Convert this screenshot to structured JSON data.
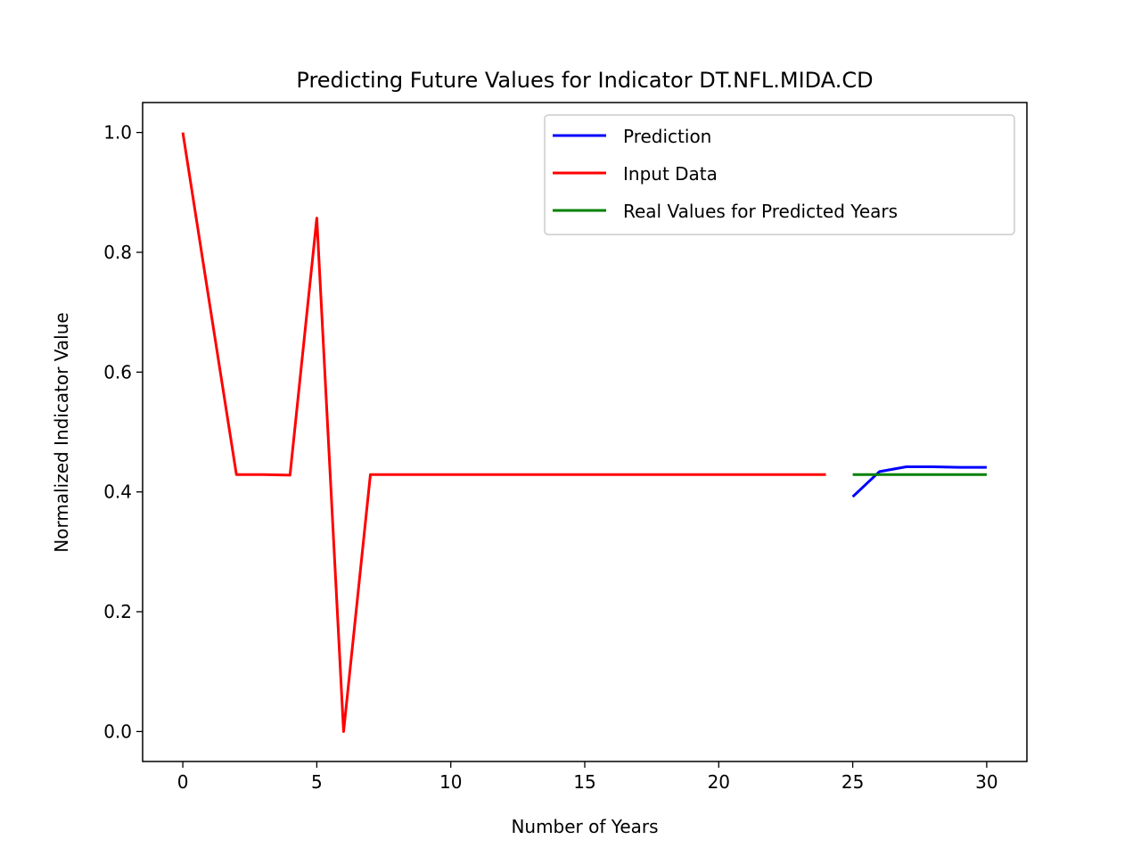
{
  "chart_data": {
    "type": "line",
    "title": "Predicting Future Values for Indicator DT.NFL.MIDA.CD",
    "xlabel": "Number of Years",
    "ylabel": "Normalized Indicator Value",
    "xlim": [
      -1.5,
      31.5
    ],
    "ylim": [
      -0.05,
      1.05
    ],
    "xticks": [
      0,
      5,
      10,
      15,
      20,
      25,
      30
    ],
    "xtick_labels": [
      "0",
      "5",
      "10",
      "15",
      "20",
      "25",
      "30"
    ],
    "yticks": [
      0.0,
      0.2,
      0.4,
      0.6,
      0.8,
      1.0
    ],
    "ytick_labels": [
      "0.0",
      "0.2",
      "0.4",
      "0.6",
      "0.8",
      "1.0"
    ],
    "grid": false,
    "legend_position": "top-right",
    "series": [
      {
        "name": "Prediction",
        "color": "#0000ff",
        "x": [
          25,
          26,
          27,
          28,
          29,
          30
        ],
        "y": [
          0.392,
          0.434,
          0.442,
          0.442,
          0.441,
          0.441
        ]
      },
      {
        "name": "Input Data",
        "color": "#ff0000",
        "x": [
          0,
          1,
          2,
          3,
          4,
          5,
          6,
          7,
          8,
          9,
          10,
          11,
          12,
          13,
          14,
          15,
          16,
          17,
          18,
          19,
          20,
          21,
          22,
          23,
          24
        ],
        "y": [
          1.0,
          0.714,
          0.429,
          0.429,
          0.428,
          0.857,
          0.0,
          0.429,
          0.429,
          0.429,
          0.429,
          0.429,
          0.429,
          0.429,
          0.429,
          0.429,
          0.429,
          0.429,
          0.429,
          0.429,
          0.429,
          0.429,
          0.429,
          0.429,
          0.429
        ]
      },
      {
        "name": "Real Values for Predicted Years",
        "color": "#008000",
        "x": [
          25,
          26,
          27,
          28,
          29,
          30
        ],
        "y": [
          0.429,
          0.429,
          0.429,
          0.429,
          0.429,
          0.429
        ]
      }
    ]
  }
}
